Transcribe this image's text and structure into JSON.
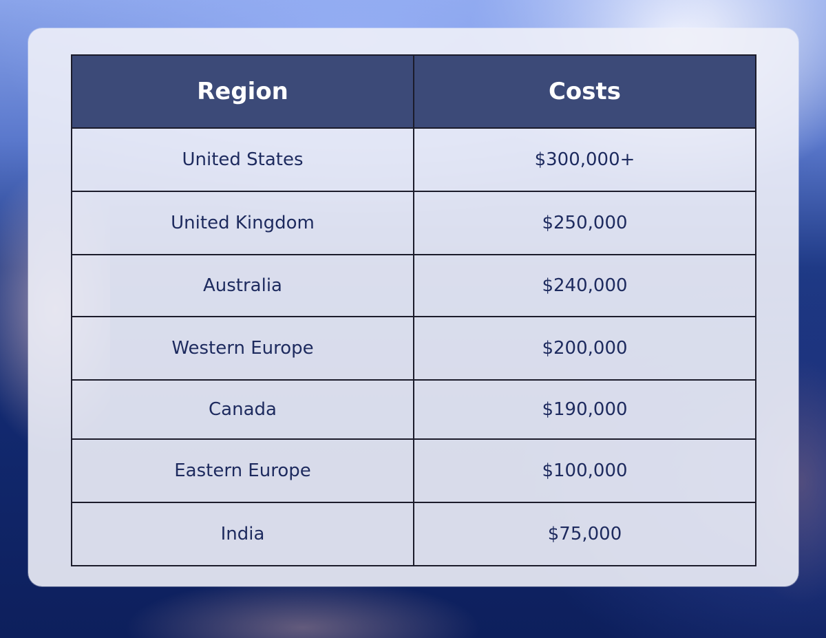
{
  "table": {
    "headers": {
      "region": "Region",
      "costs": "Costs"
    },
    "rows": [
      {
        "region": "United States",
        "cost": "$300,000+"
      },
      {
        "region": "United Kingdom",
        "cost": "$250,000"
      },
      {
        "region": "Australia",
        "cost": "$240,000"
      },
      {
        "region": "Western Europe",
        "cost": "$200,000"
      },
      {
        "region": "Canada",
        "cost": "$190,000"
      },
      {
        "region": "Eastern Europe",
        "cost": "$100,000"
      },
      {
        "region": "India",
        "cost": "$75,000"
      }
    ]
  },
  "colors": {
    "header_background": "#3c4a78",
    "header_text": "#ffffff",
    "cell_text": "#1d2a5e",
    "border": "#1b1b2a"
  }
}
